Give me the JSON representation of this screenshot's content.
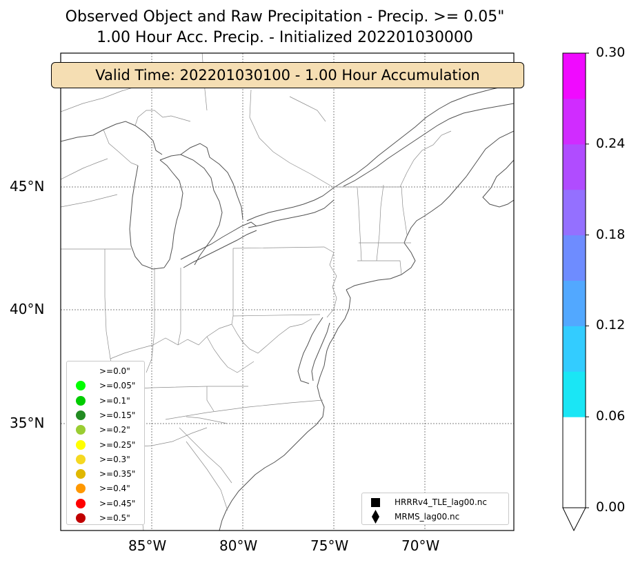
{
  "title": {
    "line1": "Observed Object and Raw Precipitation - Precip. >= 0.05\"",
    "line2": "1.00 Hour Acc. Precip. - Initialized 202201030000"
  },
  "valid_time_label": "Valid Time: 202201030100 - 1.00 Hour Accumulation",
  "map": {
    "region": "Northeastern United States",
    "lat_labels": [
      "45°N",
      "40°N",
      "35°N"
    ],
    "lon_labels": [
      "85°W",
      "80°W",
      "75°W",
      "70°W"
    ]
  },
  "legend": {
    "items": [
      {
        "label": ">=0.0\"",
        "color": "#ffffff"
      },
      {
        "label": ">=0.05\"",
        "color": "#00ff00"
      },
      {
        "label": ">=0.1\"",
        "color": "#00cc00"
      },
      {
        "label": ">=0.15\"",
        "color": "#228b22"
      },
      {
        "label": ">=0.2\"",
        "color": "#9acd32"
      },
      {
        "label": ">=0.25\"",
        "color": "#ffff00"
      },
      {
        "label": ">=0.3\"",
        "color": "#f5d821"
      },
      {
        "label": ">=0.35\"",
        "color": "#e0b800"
      },
      {
        "label": ">=0.4\"",
        "color": "#ff9800"
      },
      {
        "label": ">=0.45\"",
        "color": "#ff0000"
      },
      {
        "label": ">=0.5\"",
        "color": "#c00000"
      }
    ]
  },
  "source_legend": {
    "items": [
      {
        "label": "HRRRv4_TLE_lag00.nc",
        "symbol": "square"
      },
      {
        "label": "MRMS_lag00.nc",
        "symbol": "diamond"
      }
    ]
  },
  "colorbar": {
    "tick_labels": [
      "0.30",
      "0.24",
      "0.18",
      "0.12",
      "0.06",
      "0.00"
    ],
    "colors": [
      "#ffffff",
      "#1ae6f5",
      "#33ccff",
      "#52a8ff",
      "#6e8cff",
      "#9470ff",
      "#b04cff",
      "#d02cff",
      "#f00aff"
    ],
    "extend": "min"
  }
}
